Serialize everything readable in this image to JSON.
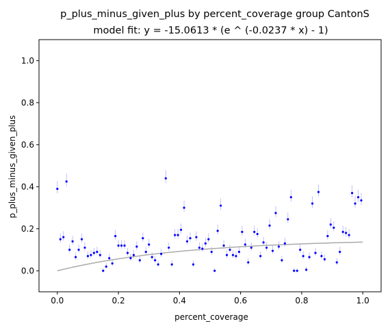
{
  "chart_data": {
    "type": "scatter",
    "title": "p_plus_minus_given_plus by percent_coverage group CantonS",
    "subtitle": "model fit: y = -15.0613 * (e ^ (-0.0237 * x) - 1)",
    "xlabel": "percent_coverage",
    "ylabel": "p_plus_minus_given_plus",
    "xlim": [
      -0.06,
      1.06
    ],
    "ylim": [
      -0.1,
      1.1
    ],
    "xticks": [
      0.0,
      0.2,
      0.4,
      0.6,
      0.8,
      1.0
    ],
    "xtick_labels": [
      "0.0",
      "0.2",
      "0.4",
      "0.6",
      "0.8",
      "1.0"
    ],
    "yticks": [
      0.0,
      0.2,
      0.4,
      0.6,
      0.8,
      1.0
    ],
    "ytick_labels": [
      "0.0",
      "0.2",
      "0.4",
      "0.6",
      "0.8",
      "1.0"
    ],
    "grid": false,
    "colors": {
      "points": "#0000ff",
      "errorbars": "#b0b0ff",
      "fit": "#aaaaaa"
    },
    "series": [
      {
        "type": "scatter_errorbar",
        "points": [
          [
            0.0,
            0.39
          ],
          [
            0.01,
            0.15
          ],
          [
            0.02,
            0.16
          ],
          [
            0.03,
            0.425
          ],
          [
            0.04,
            0.1
          ],
          [
            0.05,
            0.14
          ],
          [
            0.06,
            0.065
          ],
          [
            0.07,
            0.1
          ],
          [
            0.08,
            0.15
          ],
          [
            0.09,
            0.11
          ],
          [
            0.1,
            0.07
          ],
          [
            0.11,
            0.075
          ],
          [
            0.12,
            0.085
          ],
          [
            0.13,
            0.09
          ],
          [
            0.14,
            0.075
          ],
          [
            0.15,
            0.0
          ],
          [
            0.16,
            0.02
          ],
          [
            0.17,
            0.06
          ],
          [
            0.18,
            0.035
          ],
          [
            0.19,
            0.165
          ],
          [
            0.2,
            0.12
          ],
          [
            0.21,
            0.12
          ],
          [
            0.22,
            0.12
          ],
          [
            0.23,
            0.085
          ],
          [
            0.24,
            0.06
          ],
          [
            0.25,
            0.075
          ],
          [
            0.26,
            0.115
          ],
          [
            0.27,
            0.05
          ],
          [
            0.28,
            0.155
          ],
          [
            0.29,
            0.09
          ],
          [
            0.3,
            0.125
          ],
          [
            0.31,
            0.065
          ],
          [
            0.32,
            0.05
          ],
          [
            0.33,
            0.03
          ],
          [
            0.34,
            0.08
          ],
          [
            0.355,
            0.44
          ],
          [
            0.365,
            0.11
          ],
          [
            0.375,
            0.03
          ],
          [
            0.385,
            0.17
          ],
          [
            0.395,
            0.17
          ],
          [
            0.405,
            0.195
          ],
          [
            0.415,
            0.3
          ],
          [
            0.425,
            0.14
          ],
          [
            0.435,
            0.155
          ],
          [
            0.445,
            0.03
          ],
          [
            0.455,
            0.16
          ],
          [
            0.465,
            0.11
          ],
          [
            0.475,
            0.105
          ],
          [
            0.485,
            0.13
          ],
          [
            0.495,
            0.15
          ],
          [
            0.505,
            0.09
          ],
          [
            0.515,
            0.0
          ],
          [
            0.525,
            0.19
          ],
          [
            0.535,
            0.31
          ],
          [
            0.545,
            0.12
          ],
          [
            0.555,
            0.075
          ],
          [
            0.565,
            0.1
          ],
          [
            0.575,
            0.075
          ],
          [
            0.585,
            0.07
          ],
          [
            0.595,
            0.09
          ],
          [
            0.605,
            0.185
          ],
          [
            0.615,
            0.125
          ],
          [
            0.625,
            0.04
          ],
          [
            0.635,
            0.11
          ],
          [
            0.645,
            0.185
          ],
          [
            0.655,
            0.175
          ],
          [
            0.665,
            0.07
          ],
          [
            0.675,
            0.135
          ],
          [
            0.685,
            0.11
          ],
          [
            0.695,
            0.215
          ],
          [
            0.705,
            0.095
          ],
          [
            0.715,
            0.275
          ],
          [
            0.725,
            0.115
          ],
          [
            0.735,
            0.05
          ],
          [
            0.745,
            0.13
          ],
          [
            0.755,
            0.245
          ],
          [
            0.765,
            0.35
          ],
          [
            0.775,
            0.0
          ],
          [
            0.785,
            0.0
          ],
          [
            0.795,
            0.1
          ],
          [
            0.805,
            0.07
          ],
          [
            0.815,
            0.005
          ],
          [
            0.825,
            0.065
          ],
          [
            0.835,
            0.32
          ],
          [
            0.845,
            0.085
          ],
          [
            0.855,
            0.375
          ],
          [
            0.865,
            0.07
          ],
          [
            0.875,
            0.055
          ],
          [
            0.885,
            0.165
          ],
          [
            0.895,
            0.22
          ],
          [
            0.905,
            0.205
          ],
          [
            0.915,
            0.04
          ],
          [
            0.925,
            0.09
          ],
          [
            0.935,
            0.185
          ],
          [
            0.945,
            0.18
          ],
          [
            0.955,
            0.17
          ],
          [
            0.965,
            0.37
          ],
          [
            0.975,
            0.32
          ],
          [
            0.985,
            0.35
          ],
          [
            0.995,
            0.335
          ]
        ]
      },
      {
        "type": "fit_line",
        "a": -15.0613,
        "b": -0.0237
      }
    ]
  }
}
